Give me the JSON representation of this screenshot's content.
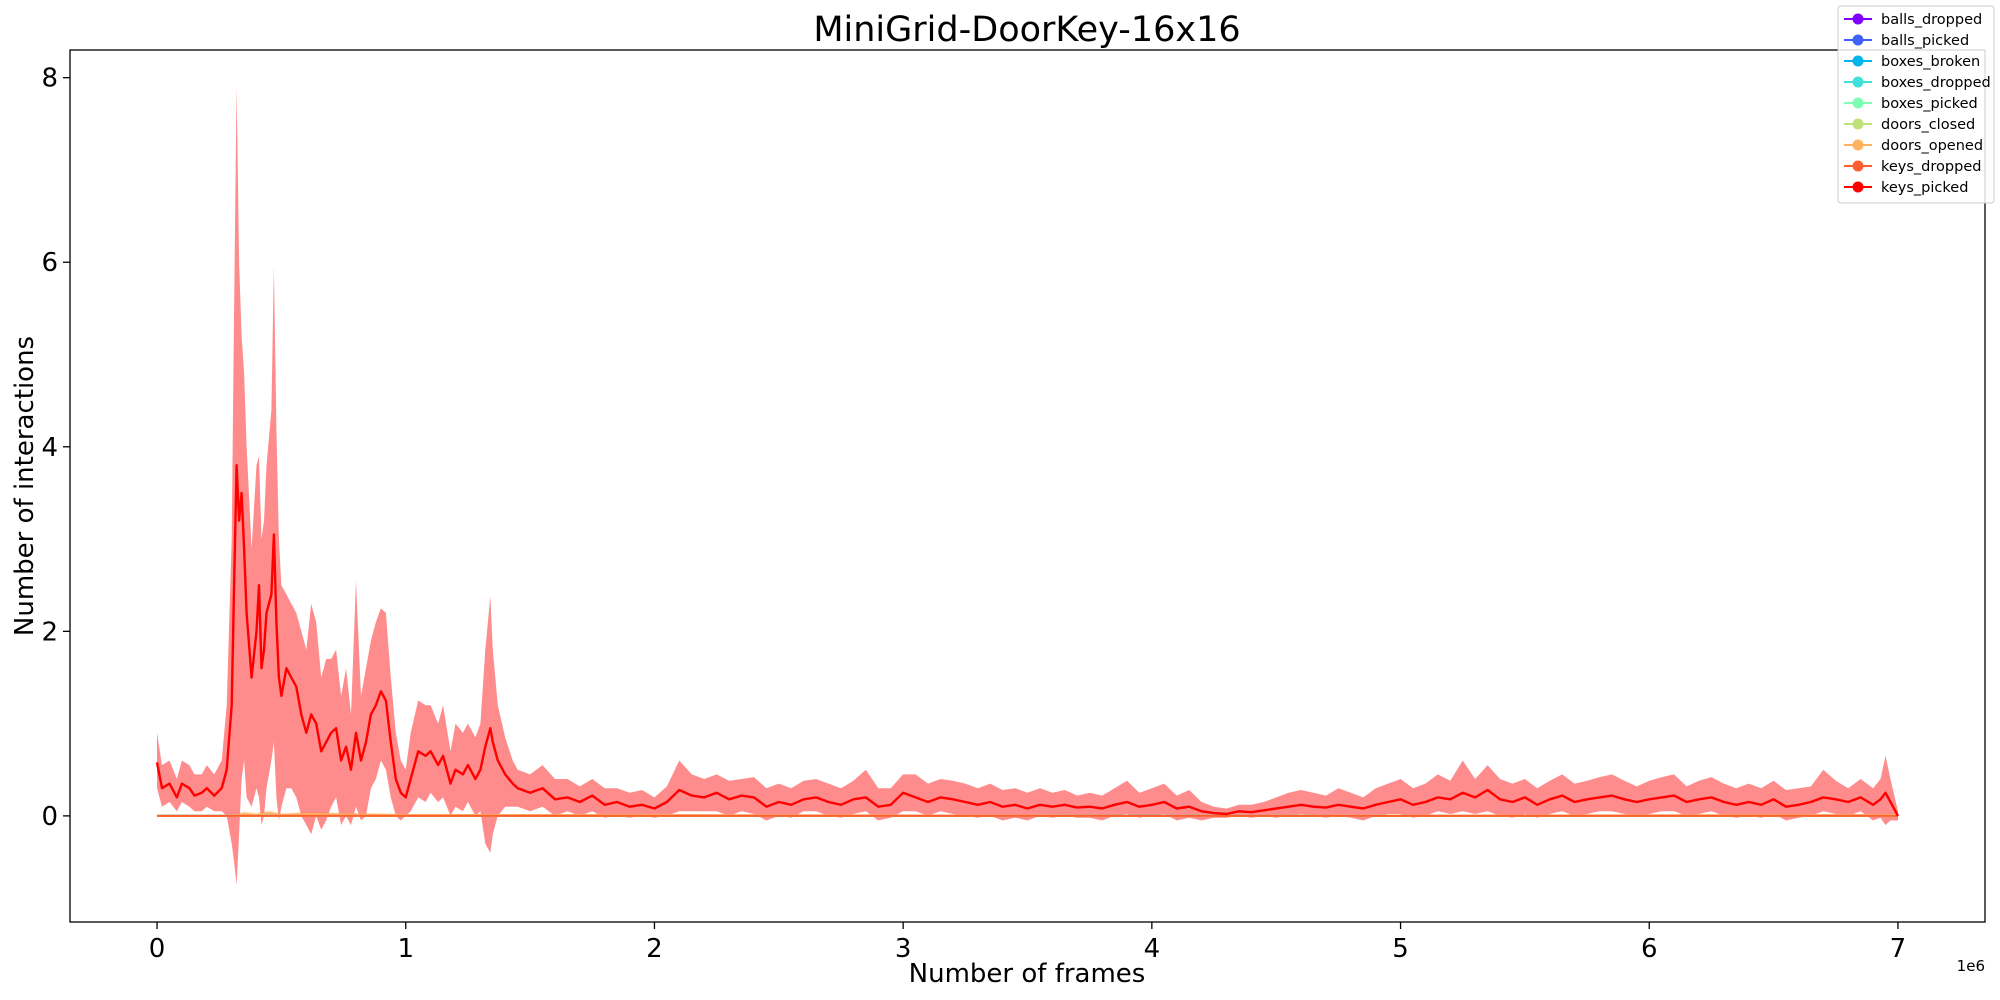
{
  "chart_data": {
    "type": "line",
    "title": "MiniGrid-DoorKey-16x16",
    "xlabel": "Number of frames",
    "ylabel": "Number of interactions",
    "x_offset_label": "1e6",
    "xlim": [
      -0.35,
      7.35
    ],
    "ylim": [
      -1.15,
      8.3
    ],
    "xticks": [
      0,
      1,
      2,
      3,
      4,
      5,
      6,
      7
    ],
    "yticks": [
      0,
      2,
      4,
      6,
      8
    ],
    "grid": false,
    "legend_position": "top-right",
    "series": [
      {
        "name": "balls_dropped",
        "color": "#7f00ff",
        "x": [
          0,
          7
        ],
        "y": [
          0,
          0
        ],
        "band_lower": [
          0,
          0
        ],
        "band_upper": [
          0,
          0
        ]
      },
      {
        "name": "balls_picked",
        "color": "#3f61fa",
        "x": [
          0,
          7
        ],
        "y": [
          0,
          0
        ],
        "band_lower": [
          0,
          0
        ],
        "band_upper": [
          0,
          0
        ]
      },
      {
        "name": "boxes_broken",
        "color": "#00b5eb",
        "x": [
          0,
          7
        ],
        "y": [
          0,
          0
        ],
        "band_lower": [
          0,
          0
        ],
        "band_upper": [
          0,
          0
        ]
      },
      {
        "name": "boxes_dropped",
        "color": "#3fe2d8",
        "x": [
          0,
          7
        ],
        "y": [
          0,
          0
        ],
        "band_lower": [
          0,
          0
        ],
        "band_upper": [
          0,
          0
        ]
      },
      {
        "name": "boxes_picked",
        "color": "#7ffeb3",
        "x": [
          0,
          7
        ],
        "y": [
          0,
          0
        ],
        "band_lower": [
          0,
          0
        ],
        "band_upper": [
          0,
          0
        ]
      },
      {
        "name": "doors_closed",
        "color": "#bfe17c",
        "x": [
          0,
          7
        ],
        "y": [
          0,
          0
        ],
        "band_lower": [
          0,
          0
        ],
        "band_upper": [
          0,
          0
        ]
      },
      {
        "name": "doors_opened",
        "color": "#ffb361",
        "x": [
          0,
          0.3,
          0.35,
          0.4,
          0.45,
          0.5,
          0.6,
          1.0,
          2.0,
          4.0,
          7.0
        ],
        "y": [
          0,
          0,
          0.02,
          0.01,
          0.03,
          0.01,
          0.02,
          0.01,
          0.01,
          0.0,
          0.01
        ],
        "band_lower": [
          0,
          0,
          0,
          0,
          0,
          0,
          0,
          0,
          0,
          0,
          0
        ],
        "band_upper": [
          0,
          0,
          0.05,
          0.03,
          0.06,
          0.03,
          0.04,
          0.02,
          0.02,
          0.01,
          0.02
        ]
      },
      {
        "name": "keys_dropped",
        "color": "#ff5f30",
        "x": [
          0,
          7
        ],
        "y": [
          0,
          0
        ],
        "band_lower": [
          0,
          0
        ],
        "band_upper": [
          0,
          0
        ]
      },
      {
        "name": "keys_picked",
        "color": "#ff0000",
        "x": [
          0.0,
          0.02,
          0.05,
          0.08,
          0.1,
          0.13,
          0.15,
          0.18,
          0.2,
          0.23,
          0.26,
          0.28,
          0.3,
          0.31,
          0.32,
          0.33,
          0.34,
          0.35,
          0.36,
          0.38,
          0.4,
          0.41,
          0.42,
          0.43,
          0.44,
          0.46,
          0.47,
          0.48,
          0.49,
          0.5,
          0.52,
          0.54,
          0.56,
          0.58,
          0.6,
          0.62,
          0.64,
          0.66,
          0.68,
          0.7,
          0.72,
          0.74,
          0.76,
          0.78,
          0.8,
          0.82,
          0.84,
          0.86,
          0.88,
          0.9,
          0.92,
          0.94,
          0.96,
          0.98,
          1.0,
          1.02,
          1.05,
          1.08,
          1.1,
          1.13,
          1.15,
          1.18,
          1.2,
          1.23,
          1.25,
          1.28,
          1.3,
          1.32,
          1.34,
          1.35,
          1.37,
          1.4,
          1.43,
          1.45,
          1.5,
          1.55,
          1.6,
          1.65,
          1.7,
          1.75,
          1.8,
          1.85,
          1.9,
          1.95,
          2.0,
          2.05,
          2.1,
          2.15,
          2.2,
          2.25,
          2.3,
          2.35,
          2.4,
          2.45,
          2.5,
          2.55,
          2.6,
          2.65,
          2.7,
          2.75,
          2.8,
          2.85,
          2.9,
          2.95,
          3.0,
          3.05,
          3.1,
          3.15,
          3.2,
          3.25,
          3.3,
          3.35,
          3.4,
          3.45,
          3.5,
          3.55,
          3.6,
          3.65,
          3.7,
          3.75,
          3.8,
          3.85,
          3.9,
          3.95,
          4.0,
          4.05,
          4.1,
          4.15,
          4.2,
          4.25,
          4.3,
          4.35,
          4.4,
          4.45,
          4.5,
          4.55,
          4.6,
          4.65,
          4.7,
          4.75,
          4.8,
          4.85,
          4.9,
          4.95,
          5.0,
          5.05,
          5.1,
          5.15,
          5.2,
          5.25,
          5.3,
          5.35,
          5.4,
          5.45,
          5.5,
          5.55,
          5.6,
          5.65,
          5.7,
          5.75,
          5.8,
          5.85,
          5.9,
          5.95,
          6.0,
          6.05,
          6.1,
          6.15,
          6.2,
          6.25,
          6.3,
          6.35,
          6.4,
          6.45,
          6.5,
          6.55,
          6.6,
          6.65,
          6.7,
          6.75,
          6.8,
          6.85,
          6.9,
          6.93,
          6.95,
          6.97,
          7.0
        ],
        "y": [
          0.58,
          0.3,
          0.35,
          0.2,
          0.35,
          0.3,
          0.22,
          0.25,
          0.3,
          0.22,
          0.3,
          0.5,
          1.2,
          2.5,
          3.8,
          3.2,
          3.5,
          2.9,
          2.2,
          1.5,
          2.0,
          2.5,
          1.6,
          1.8,
          2.2,
          2.4,
          3.05,
          2.1,
          1.5,
          1.3,
          1.6,
          1.5,
          1.4,
          1.1,
          0.9,
          1.1,
          1.0,
          0.7,
          0.8,
          0.9,
          0.95,
          0.6,
          0.75,
          0.5,
          0.9,
          0.6,
          0.8,
          1.1,
          1.2,
          1.35,
          1.25,
          0.8,
          0.4,
          0.25,
          0.2,
          0.4,
          0.7,
          0.65,
          0.7,
          0.55,
          0.65,
          0.35,
          0.5,
          0.45,
          0.55,
          0.4,
          0.5,
          0.75,
          0.95,
          0.8,
          0.6,
          0.45,
          0.35,
          0.3,
          0.25,
          0.3,
          0.18,
          0.2,
          0.15,
          0.22,
          0.12,
          0.15,
          0.1,
          0.12,
          0.08,
          0.15,
          0.28,
          0.22,
          0.2,
          0.25,
          0.18,
          0.22,
          0.2,
          0.1,
          0.15,
          0.12,
          0.18,
          0.2,
          0.15,
          0.12,
          0.18,
          0.2,
          0.1,
          0.12,
          0.25,
          0.2,
          0.15,
          0.2,
          0.18,
          0.15,
          0.12,
          0.15,
          0.1,
          0.12,
          0.08,
          0.12,
          0.1,
          0.12,
          0.09,
          0.1,
          0.08,
          0.12,
          0.15,
          0.1,
          0.12,
          0.15,
          0.08,
          0.1,
          0.05,
          0.03,
          0.02,
          0.05,
          0.04,
          0.06,
          0.08,
          0.1,
          0.12,
          0.1,
          0.09,
          0.12,
          0.1,
          0.08,
          0.12,
          0.15,
          0.18,
          0.12,
          0.15,
          0.2,
          0.18,
          0.25,
          0.2,
          0.28,
          0.18,
          0.15,
          0.2,
          0.12,
          0.18,
          0.22,
          0.15,
          0.18,
          0.2,
          0.22,
          0.18,
          0.15,
          0.18,
          0.2,
          0.22,
          0.15,
          0.18,
          0.2,
          0.15,
          0.12,
          0.15,
          0.12,
          0.18,
          0.1,
          0.12,
          0.15,
          0.2,
          0.18,
          0.15,
          0.2,
          0.12,
          0.18,
          0.25,
          0.15,
          0.0
        ],
        "band_lower": [
          0.3,
          0.1,
          0.15,
          0.05,
          0.15,
          0.1,
          0.05,
          0.05,
          0.1,
          0.05,
          0.05,
          0.0,
          -0.3,
          -0.5,
          -0.75,
          -0.2,
          0.4,
          0.6,
          0.2,
          0.1,
          0.3,
          0.2,
          -0.1,
          0.0,
          0.3,
          0.6,
          0.8,
          0.2,
          -0.05,
          0.1,
          0.3,
          0.3,
          0.2,
          0.0,
          -0.1,
          -0.2,
          0.0,
          -0.15,
          -0.05,
          0.1,
          0.2,
          -0.1,
          0.0,
          -0.1,
          0.1,
          -0.05,
          0.0,
          0.3,
          0.4,
          0.6,
          0.5,
          0.2,
          0.0,
          -0.05,
          0.0,
          0.05,
          0.2,
          0.15,
          0.25,
          0.15,
          0.2,
          0.0,
          0.1,
          0.05,
          0.15,
          0.0,
          0.05,
          -0.3,
          -0.4,
          -0.2,
          0.0,
          0.1,
          0.1,
          0.1,
          0.05,
          0.1,
          0.0,
          0.05,
          0.0,
          0.05,
          -0.02,
          0.0,
          -0.02,
          0.0,
          -0.02,
          0.0,
          0.05,
          0.05,
          0.05,
          0.05,
          0.0,
          0.05,
          0.02,
          -0.05,
          0.0,
          -0.02,
          0.05,
          0.05,
          0.0,
          -0.02,
          0.02,
          0.05,
          -0.05,
          -0.02,
          0.05,
          0.05,
          0.0,
          0.05,
          0.02,
          0.0,
          -0.02,
          0.0,
          -0.05,
          -0.02,
          -0.05,
          0.0,
          -0.02,
          0.0,
          -0.02,
          -0.02,
          -0.05,
          0.0,
          0.02,
          -0.02,
          0.0,
          0.02,
          -0.05,
          -0.02,
          -0.05,
          -0.02,
          -0.02,
          0.0,
          -0.02,
          0.0,
          -0.02,
          0.0,
          0.02,
          0.0,
          -0.02,
          0.0,
          -0.02,
          -0.05,
          0.0,
          0.02,
          0.02,
          -0.02,
          0.0,
          0.05,
          0.02,
          0.05,
          0.02,
          0.05,
          0.0,
          -0.02,
          0.02,
          -0.02,
          0.02,
          0.05,
          0.0,
          0.02,
          0.05,
          0.05,
          0.02,
          0.0,
          0.02,
          0.05,
          0.05,
          0.0,
          0.02,
          0.05,
          0.0,
          -0.02,
          0.0,
          -0.02,
          0.02,
          -0.05,
          -0.02,
          0.0,
          0.05,
          0.02,
          0.0,
          0.05,
          -0.05,
          -0.02,
          -0.1,
          -0.05,
          -0.05
        ],
        "band_upper": [
          0.9,
          0.55,
          0.6,
          0.4,
          0.6,
          0.55,
          0.45,
          0.45,
          0.55,
          0.45,
          0.6,
          1.2,
          3.0,
          5.5,
          7.9,
          6.0,
          5.2,
          4.8,
          4.0,
          2.9,
          3.8,
          3.9,
          3.0,
          3.2,
          3.8,
          4.4,
          5.95,
          4.2,
          3.0,
          2.5,
          2.4,
          2.3,
          2.2,
          2.0,
          1.8,
          2.3,
          2.1,
          1.5,
          1.7,
          1.7,
          1.8,
          1.3,
          1.6,
          1.1,
          2.55,
          1.3,
          1.6,
          1.9,
          2.1,
          2.25,
          2.2,
          1.5,
          0.9,
          0.6,
          0.5,
          0.9,
          1.25,
          1.2,
          1.2,
          1.0,
          1.2,
          0.7,
          1.0,
          0.9,
          1.0,
          0.85,
          1.0,
          1.8,
          2.38,
          1.8,
          1.2,
          0.85,
          0.6,
          0.5,
          0.45,
          0.55,
          0.4,
          0.4,
          0.32,
          0.4,
          0.3,
          0.3,
          0.25,
          0.28,
          0.2,
          0.32,
          0.6,
          0.45,
          0.4,
          0.45,
          0.38,
          0.4,
          0.42,
          0.3,
          0.35,
          0.3,
          0.38,
          0.4,
          0.35,
          0.3,
          0.38,
          0.5,
          0.3,
          0.3,
          0.45,
          0.45,
          0.35,
          0.4,
          0.38,
          0.35,
          0.3,
          0.35,
          0.28,
          0.3,
          0.25,
          0.3,
          0.25,
          0.28,
          0.22,
          0.25,
          0.22,
          0.3,
          0.38,
          0.25,
          0.3,
          0.35,
          0.22,
          0.28,
          0.15,
          0.1,
          0.08,
          0.12,
          0.12,
          0.15,
          0.2,
          0.25,
          0.28,
          0.25,
          0.22,
          0.3,
          0.25,
          0.2,
          0.3,
          0.35,
          0.4,
          0.3,
          0.35,
          0.45,
          0.38,
          0.6,
          0.4,
          0.55,
          0.4,
          0.35,
          0.4,
          0.3,
          0.38,
          0.45,
          0.35,
          0.38,
          0.42,
          0.45,
          0.38,
          0.32,
          0.38,
          0.42,
          0.45,
          0.32,
          0.38,
          0.42,
          0.35,
          0.3,
          0.35,
          0.3,
          0.38,
          0.28,
          0.3,
          0.32,
          0.5,
          0.38,
          0.3,
          0.4,
          0.3,
          0.4,
          0.65,
          0.4,
          0.05
        ]
      }
    ]
  }
}
